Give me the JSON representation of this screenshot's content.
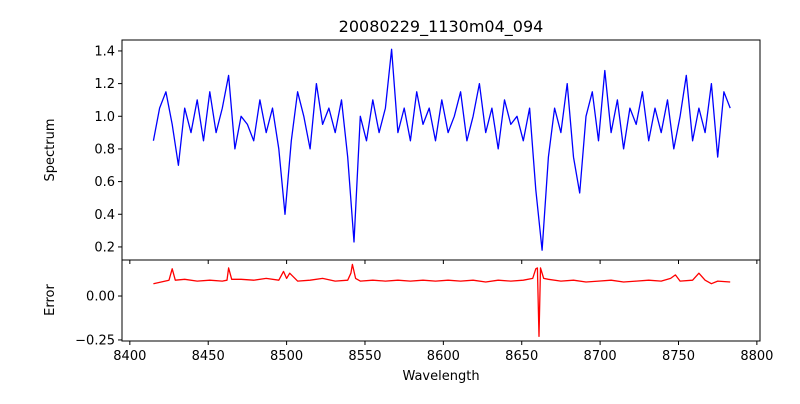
{
  "chart_data": [
    {
      "type": "line",
      "title": "20080229_1130m04_094",
      "xlabel": "",
      "ylabel": "Spectrum",
      "xlim": [
        8395,
        8802
      ],
      "ylim": [
        0.12,
        1.467
      ],
      "xticks": [
        8400,
        8450,
        8500,
        8550,
        8600,
        8650,
        8700,
        8750,
        8800
      ],
      "yticks": [
        0.2,
        0.4,
        0.6,
        0.8,
        1.0,
        1.2,
        1.4
      ],
      "ytick_labels": [
        "0.2",
        "0.4",
        "0.6",
        "0.8",
        "1.0",
        "1.2",
        "1.4"
      ],
      "grid": false,
      "series": [
        {
          "name": "Spectrum",
          "color": "#0000ff",
          "x_start": 8415,
          "x_step": 4,
          "values": [
            0.85,
            1.05,
            1.15,
            0.95,
            0.7,
            1.05,
            0.9,
            1.1,
            0.85,
            1.15,
            0.9,
            1.05,
            1.25,
            0.8,
            1.0,
            0.95,
            0.85,
            1.1,
            0.9,
            1.05,
            0.8,
            0.4,
            0.85,
            1.15,
            1.0,
            0.8,
            1.2,
            0.95,
            1.05,
            0.9,
            1.1,
            0.75,
            0.23,
            1.0,
            0.85,
            1.1,
            0.9,
            1.05,
            1.41,
            0.9,
            1.05,
            0.85,
            1.15,
            0.95,
            1.05,
            0.85,
            1.1,
            0.9,
            1.0,
            1.15,
            0.85,
            1.0,
            1.2,
            0.9,
            1.05,
            0.8,
            1.1,
            0.95,
            1.0,
            0.85,
            1.05,
            0.55,
            0.18,
            0.75,
            1.05,
            0.9,
            1.2,
            0.75,
            0.53,
            1.0,
            1.15,
            0.85,
            1.28,
            0.9,
            1.1,
            0.8,
            1.05,
            0.95,
            1.15,
            0.85,
            1.05,
            0.9,
            1.1,
            0.8,
            1.0,
            1.25,
            0.85,
            1.05,
            0.9,
            1.2,
            0.75,
            1.15,
            1.05
          ]
        }
      ]
    },
    {
      "type": "line",
      "title": "",
      "xlabel": "Wavelength",
      "ylabel": "Error",
      "xlim": [
        8395,
        8802
      ],
      "ylim": [
        -0.256,
        0.205
      ],
      "xticks": [
        8400,
        8450,
        8500,
        8550,
        8600,
        8650,
        8700,
        8750,
        8800
      ],
      "yticks": [
        -0.25,
        0.0
      ],
      "ytick_labels": [
        "−0.25",
        "0.00"
      ],
      "grid": false,
      "series": [
        {
          "name": "Error",
          "color": "#ff0000",
          "x": [
            8415,
            8420,
            8425,
            8427,
            8429,
            8435,
            8443,
            8451,
            8459,
            8462,
            8463,
            8465,
            8471,
            8479,
            8487,
            8495,
            8498,
            8500,
            8502,
            8507,
            8515,
            8523,
            8531,
            8539,
            8541,
            8542,
            8544,
            8547,
            8555,
            8563,
            8571,
            8579,
            8587,
            8595,
            8603,
            8611,
            8619,
            8627,
            8635,
            8643,
            8651,
            8657,
            8659,
            8660,
            8661,
            8662,
            8664,
            8667,
            8675,
            8683,
            8691,
            8699,
            8707,
            8715,
            8723,
            8731,
            8739,
            8745,
            8748,
            8751,
            8759,
            8763,
            8767,
            8771,
            8775,
            8783
          ],
          "values": [
            0.07,
            0.08,
            0.09,
            0.155,
            0.09,
            0.095,
            0.085,
            0.09,
            0.085,
            0.09,
            0.16,
            0.095,
            0.095,
            0.09,
            0.1,
            0.09,
            0.14,
            0.1,
            0.13,
            0.085,
            0.09,
            0.1,
            0.085,
            0.09,
            0.13,
            0.18,
            0.1,
            0.085,
            0.09,
            0.085,
            0.09,
            0.085,
            0.09,
            0.085,
            0.09,
            0.085,
            0.09,
            0.08,
            0.09,
            0.085,
            0.09,
            0.1,
            0.155,
            0.16,
            -0.23,
            0.16,
            0.1,
            0.095,
            0.085,
            0.09,
            0.08,
            0.085,
            0.09,
            0.08,
            0.085,
            0.09,
            0.085,
            0.1,
            0.12,
            0.085,
            0.09,
            0.13,
            0.09,
            0.07,
            0.085,
            0.08
          ]
        }
      ]
    }
  ]
}
